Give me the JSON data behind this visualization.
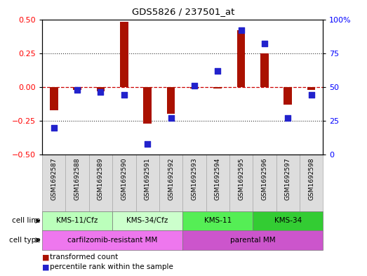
{
  "title": "GDS5826 / 237501_at",
  "samples": [
    "GSM1692587",
    "GSM1692588",
    "GSM1692589",
    "GSM1692590",
    "GSM1692591",
    "GSM1692592",
    "GSM1692593",
    "GSM1692594",
    "GSM1692595",
    "GSM1692596",
    "GSM1692597",
    "GSM1692598"
  ],
  "transformed_count": [
    -0.17,
    -0.02,
    -0.03,
    0.48,
    -0.27,
    -0.2,
    -0.01,
    -0.01,
    0.42,
    0.25,
    -0.13,
    -0.02
  ],
  "percentile_rank": [
    20,
    48,
    46,
    44,
    8,
    27,
    51,
    62,
    92,
    82,
    27,
    44
  ],
  "cell_lines": [
    {
      "label": "KMS-11/Cfz",
      "start": 0,
      "end": 3,
      "color": "#bbffbb"
    },
    {
      "label": "KMS-34/Cfz",
      "start": 3,
      "end": 6,
      "color": "#ccffcc"
    },
    {
      "label": "KMS-11",
      "start": 6,
      "end": 9,
      "color": "#55ee55"
    },
    {
      "label": "KMS-34",
      "start": 9,
      "end": 12,
      "color": "#33cc33"
    }
  ],
  "cell_types": [
    {
      "label": "carfilzomib-resistant MM",
      "start": 0,
      "end": 6,
      "color": "#ee77ee"
    },
    {
      "label": "parental MM",
      "start": 6,
      "end": 12,
      "color": "#cc55cc"
    }
  ],
  "bar_color": "#aa1100",
  "dot_color": "#2222cc",
  "ylim": [
    -0.5,
    0.5
  ],
  "y2lim": [
    0,
    100
  ],
  "yticks": [
    -0.5,
    -0.25,
    0,
    0.25,
    0.5
  ],
  "y2ticks": [
    0,
    25,
    50,
    75,
    100
  ],
  "y2ticklabels": [
    "0",
    "25",
    "50",
    "75",
    "100%"
  ],
  "hline_color": "#cc0000",
  "dotted_color": "#333333",
  "legend_bar_label": "transformed count",
  "legend_dot_label": "percentile rank within the sample",
  "background_plot": "#ffffff",
  "background_sample": "#dddddd",
  "bar_width": 0.35
}
